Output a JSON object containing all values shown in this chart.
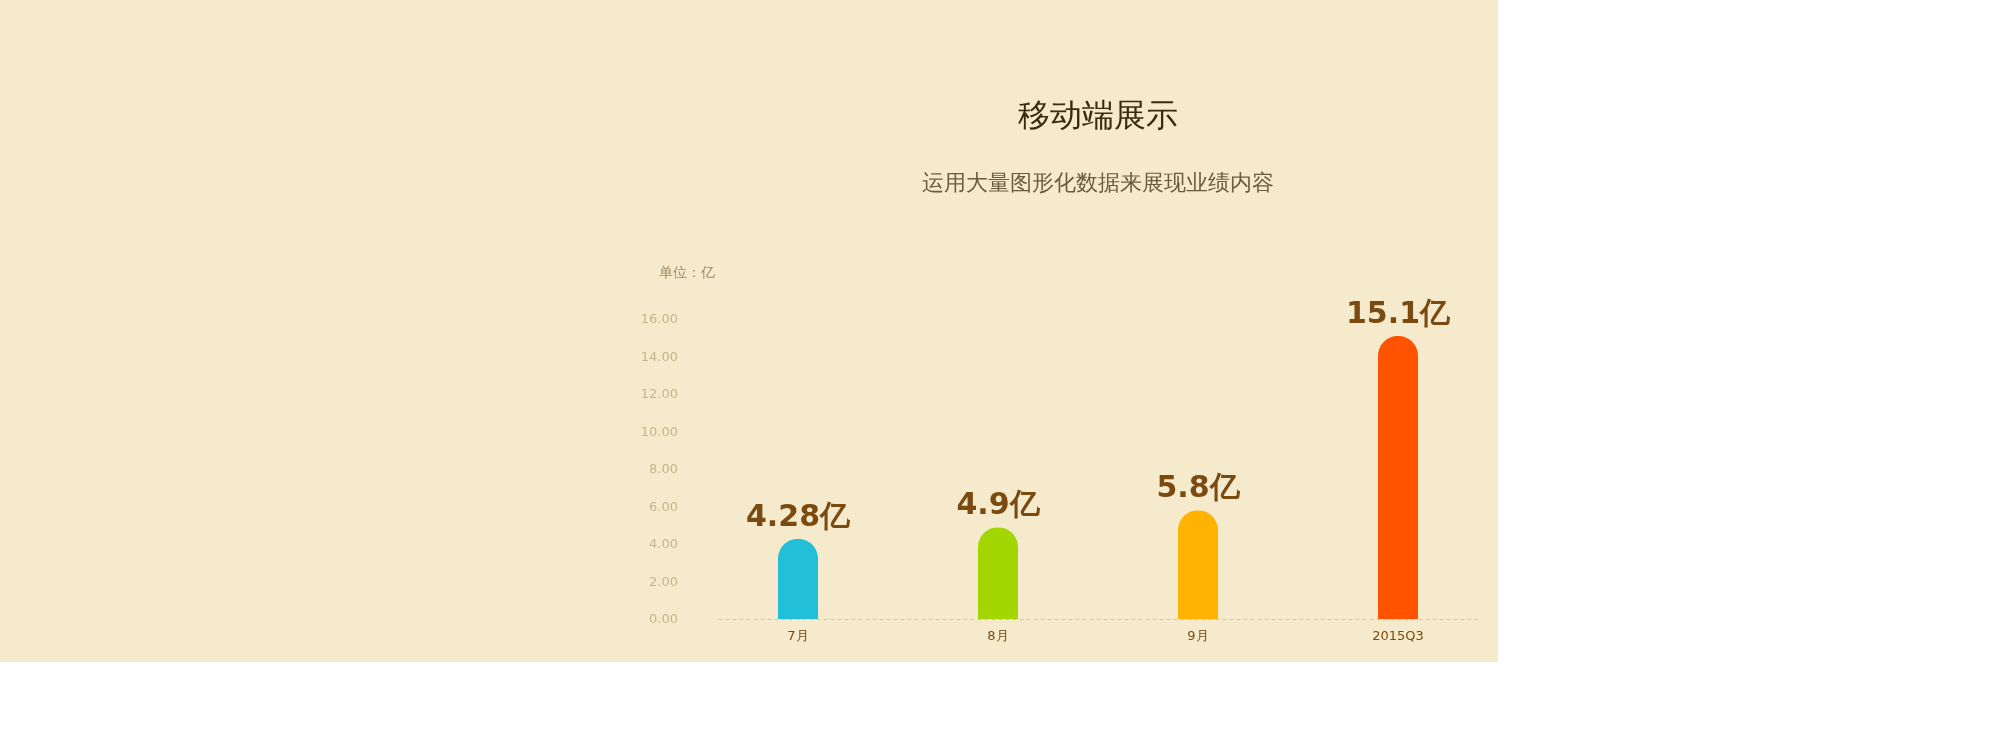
{
  "chart_data": {
    "type": "bar",
    "title": "移动端展示",
    "subtitle": "运用大量图形化数据来展现业绩内容",
    "ylabel": "单位：亿",
    "categories": [
      "7月",
      "8月",
      "9月",
      "2015Q3"
    ],
    "values": [
      4.28,
      4.9,
      5.8,
      15.1
    ],
    "colors": [
      "#21c0d8",
      "#a3d600",
      "#ffb300",
      "#ff5300"
    ],
    "value_labels": [
      "4.28亿",
      "4.9亿",
      "5.8亿",
      "15.1亿"
    ],
    "ylim": [
      0,
      16
    ],
    "yticks": [
      {
        "value": 0,
        "label": "0.00"
      },
      {
        "value": 2,
        "label": "2.00"
      },
      {
        "value": 4,
        "label": "4.00"
      },
      {
        "value": 6,
        "label": "6.00"
      },
      {
        "value": 8,
        "label": "8.00"
      },
      {
        "value": 10,
        "label": "10.00"
      },
      {
        "value": 12,
        "label": "12.00"
      },
      {
        "value": 14,
        "label": "14.00"
      },
      {
        "value": 16,
        "label": "16.00"
      }
    ],
    "grid": false
  }
}
